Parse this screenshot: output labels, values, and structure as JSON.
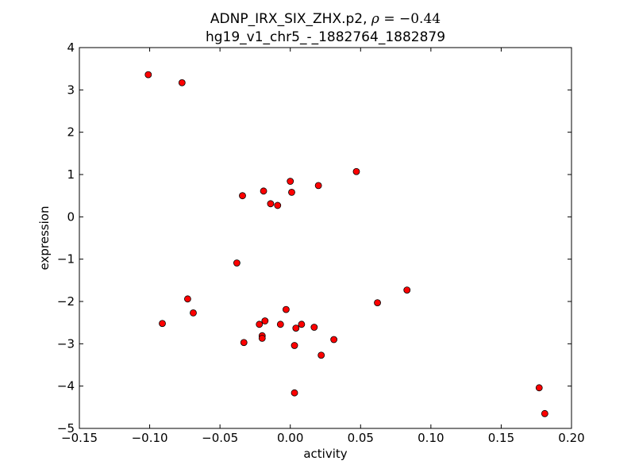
{
  "chart_data": {
    "type": "scatter",
    "title_line1_prefix": "ADNP_IRX_SIX_ZHX.p2, ",
    "title_rho_symbol": "ρ",
    "title_rho_value": " = −0.44",
    "title_line2": "hg19_v1_chr5_-_1882764_1882879",
    "xlabel": "activity",
    "ylabel": "expression",
    "xlim": [
      -0.15,
      0.2
    ],
    "ylim": [
      -5,
      4
    ],
    "xticks": [
      -0.15,
      -0.1,
      -0.05,
      0.0,
      0.05,
      0.1,
      0.15,
      0.2
    ],
    "xtick_labels": [
      "−0.15",
      "−0.10",
      "−0.05",
      "0.00",
      "0.05",
      "0.10",
      "0.15",
      "0.20"
    ],
    "yticks": [
      -5,
      -4,
      -3,
      -2,
      -1,
      0,
      1,
      2,
      3,
      4
    ],
    "ytick_labels": [
      "−5",
      "−4",
      "−3",
      "−2",
      "−1",
      "0",
      "1",
      "2",
      "3",
      "4"
    ],
    "grid": false,
    "marker_color": "#ff0000",
    "marker_edge_color": "#000000",
    "points": [
      {
        "x": -0.101,
        "y": 3.36
      },
      {
        "x": -0.077,
        "y": 3.17
      },
      {
        "x": 0.047,
        "y": 1.07
      },
      {
        "x": 0.0,
        "y": 0.84
      },
      {
        "x": 0.02,
        "y": 0.74
      },
      {
        "x": -0.019,
        "y": 0.61
      },
      {
        "x": 0.001,
        "y": 0.58
      },
      {
        "x": -0.034,
        "y": 0.5
      },
      {
        "x": -0.014,
        "y": 0.31
      },
      {
        "x": -0.009,
        "y": 0.27
      },
      {
        "x": -0.038,
        "y": -1.09
      },
      {
        "x": 0.083,
        "y": -1.73
      },
      {
        "x": -0.073,
        "y": -1.94
      },
      {
        "x": 0.062,
        "y": -2.03
      },
      {
        "x": -0.003,
        "y": -2.19
      },
      {
        "x": -0.069,
        "y": -2.27
      },
      {
        "x": -0.018,
        "y": -2.46
      },
      {
        "x": -0.091,
        "y": -2.52
      },
      {
        "x": -0.022,
        "y": -2.54
      },
      {
        "x": -0.007,
        "y": -2.54
      },
      {
        "x": 0.008,
        "y": -2.54
      },
      {
        "x": 0.017,
        "y": -2.61
      },
      {
        "x": 0.004,
        "y": -2.63
      },
      {
        "x": -0.02,
        "y": -2.81
      },
      {
        "x": -0.02,
        "y": -2.87
      },
      {
        "x": 0.031,
        "y": -2.9
      },
      {
        "x": -0.033,
        "y": -2.97
      },
      {
        "x": 0.003,
        "y": -3.04
      },
      {
        "x": 0.022,
        "y": -3.27
      },
      {
        "x": 0.003,
        "y": -4.16
      },
      {
        "x": 0.177,
        "y": -4.04
      },
      {
        "x": 0.181,
        "y": -4.65
      }
    ]
  }
}
